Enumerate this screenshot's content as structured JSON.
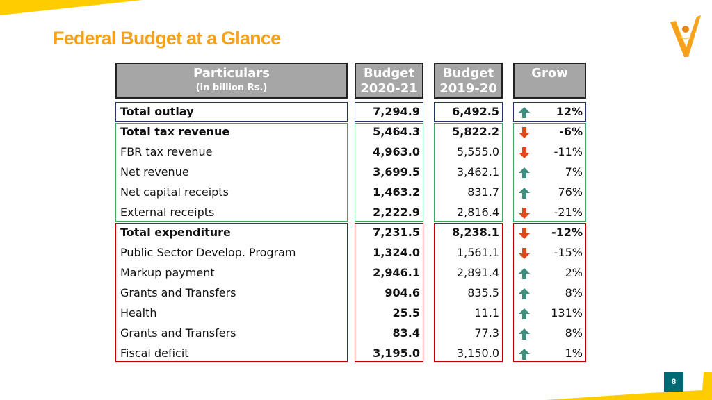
{
  "slide": {
    "title": "Federal Budget at a Glance",
    "page_number": "8"
  },
  "header": {
    "particulars": "Particulars",
    "unit": "(in billion Rs.)",
    "budget_label": "Budget",
    "year_2020": "2020-21",
    "year_2019": "2019-20",
    "grow": "Grow"
  },
  "colors": {
    "title": "#F4A21C",
    "header_bg": "#A6A6A6",
    "up_arrow": "#3E8E7E",
    "down_arrow": "#E0491E",
    "box_blue": "#1F3864",
    "box_green": "#3CAB5B",
    "box_red": "#C00000",
    "page_badge": "#006A74"
  },
  "rows": [
    {
      "label": "Total outlay",
      "b2020": "7,294.9",
      "b2019": "6,492.5",
      "dir": "up",
      "pct": "12%",
      "bold": true
    },
    {
      "label": "Total tax revenue",
      "b2020": "5,464.3",
      "b2019": "5,822.2",
      "dir": "down",
      "pct": "-6%",
      "bold": true
    },
    {
      "label": "FBR tax revenue",
      "b2020": "4,963.0",
      "b2019": "5,555.0",
      "dir": "down",
      "pct": "-11%",
      "bold": false
    },
    {
      "label": "Net revenue",
      "b2020": "3,699.5",
      "b2019": "3,462.1",
      "dir": "up",
      "pct": "7%",
      "bold": false
    },
    {
      "label": "Net capital receipts",
      "b2020": "1,463.2",
      "b2019": "831.7",
      "dir": "up",
      "pct": "76%",
      "bold": false
    },
    {
      "label": "External receipts",
      "b2020": "2,222.9",
      "b2019": "2,816.4",
      "dir": "down",
      "pct": "-21%",
      "bold": false
    },
    {
      "label": "Total expenditure",
      "b2020": "7,231.5",
      "b2019": "8,238.1",
      "dir": "down",
      "pct": "-12%",
      "bold": true
    },
    {
      "label": "Public Sector Develop. Program",
      "b2020": "1,324.0",
      "b2019": "1,561.1",
      "dir": "down",
      "pct": "-15%",
      "bold": false
    },
    {
      "label": "Markup payment",
      "b2020": "2,946.1",
      "b2019": "2,891.4",
      "dir": "up",
      "pct": "2%",
      "bold": false
    },
    {
      "label": "Grants and Transfers",
      "b2020": "904.6",
      "b2019": "835.5",
      "dir": "up",
      "pct": "8%",
      "bold": false
    },
    {
      "label": "Health",
      "b2020": "25.5",
      "b2019": "11.1",
      "dir": "up",
      "pct": "131%",
      "bold": false
    },
    {
      "label": "Grants and Transfers",
      "b2020": "83.4",
      "b2019": "77.3",
      "dir": "up",
      "pct": "8%",
      "bold": false
    },
    {
      "label": "Fiscal deficit",
      "b2020": "3,195.0",
      "b2019": "3,150.0",
      "dir": "up",
      "pct": "1%",
      "bold": false
    }
  ]
}
